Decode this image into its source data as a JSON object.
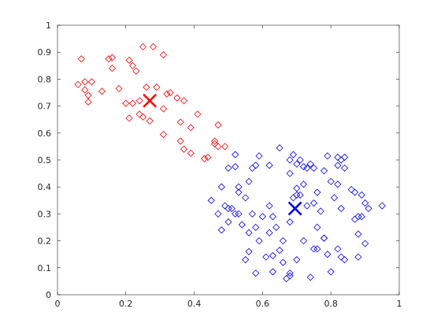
{
  "chart_data": {
    "type": "scatter",
    "xlim": [
      0,
      1
    ],
    "ylim": [
      0,
      1
    ],
    "xticks": [
      0,
      0.2,
      0.4,
      0.6,
      0.8,
      1
    ],
    "yticks": [
      0,
      0.1,
      0.2,
      0.3,
      0.4,
      0.5,
      0.6,
      0.7,
      0.8,
      0.9,
      1
    ],
    "series": [
      {
        "color": "#ff0000",
        "marker": "diamond",
        "x": [
          0.07,
          0.08,
          0.06,
          0.08,
          0.1,
          0.09,
          0.09,
          0.13,
          0.15,
          0.16,
          0.16,
          0.18,
          0.21,
          0.22,
          0.23,
          0.25,
          0.28,
          0.31,
          0.2,
          0.22,
          0.24,
          0.26,
          0.29,
          0.33,
          0.32,
          0.35,
          0.37,
          0.31,
          0.21,
          0.24,
          0.25,
          0.27,
          0.36,
          0.39,
          0.31,
          0.36,
          0.41,
          0.47,
          0.46,
          0.47,
          0.46,
          0.49,
          0.37,
          0.39,
          0.44,
          0.43
        ],
        "y": [
          0.875,
          0.79,
          0.78,
          0.76,
          0.79,
          0.74,
          0.715,
          0.755,
          0.875,
          0.88,
          0.84,
          0.765,
          0.87,
          0.85,
          0.83,
          0.92,
          0.92,
          0.89,
          0.71,
          0.71,
          0.72,
          0.77,
          0.77,
          0.75,
          0.745,
          0.73,
          0.72,
          0.69,
          0.655,
          0.67,
          0.66,
          0.645,
          0.64,
          0.62,
          0.595,
          0.57,
          0.67,
          0.63,
          0.57,
          0.55,
          0.56,
          0.55,
          0.54,
          0.525,
          0.51,
          0.505
        ]
      },
      {
        "color": "#0000ff",
        "marker": "diamond",
        "x": [
          0.65,
          0.59,
          0.58,
          0.57,
          0.62,
          0.68,
          0.68,
          0.69,
          0.7,
          0.71,
          0.72,
          0.73,
          0.74,
          0.75,
          0.79,
          0.78,
          0.82,
          0.83,
          0.84,
          0.82,
          0.84,
          0.52,
          0.5,
          0.52,
          0.56,
          0.55,
          0.53,
          0.53,
          0.48,
          0.45,
          0.47,
          0.49,
          0.5,
          0.51,
          0.52,
          0.53,
          0.48,
          0.5,
          0.54,
          0.56,
          0.58,
          0.57,
          0.6,
          0.62,
          0.63,
          0.64,
          0.66,
          0.68,
          0.62,
          0.59,
          0.55,
          0.56,
          0.58,
          0.61,
          0.63,
          0.63,
          0.65,
          0.66,
          0.67,
          0.68,
          0.68,
          0.7,
          0.7,
          0.7,
          0.72,
          0.71,
          0.69,
          0.73,
          0.75,
          0.76,
          0.76,
          0.77,
          0.78,
          0.79,
          0.75,
          0.76,
          0.74,
          0.72,
          0.81,
          0.82,
          0.8,
          0.83,
          0.86,
          0.87,
          0.88,
          0.89,
          0.87,
          0.88,
          0.9,
          0.91,
          0.89,
          0.95,
          0.82,
          0.83,
          0.88,
          0.9,
          0.8,
          0.78,
          0.84
        ],
        "y": [
          0.545,
          0.515,
          0.48,
          0.47,
          0.48,
          0.5,
          0.45,
          0.52,
          0.485,
          0.5,
          0.475,
          0.47,
          0.485,
          0.47,
          0.515,
          0.46,
          0.51,
          0.5,
          0.51,
          0.48,
          0.47,
          0.52,
          0.47,
          0.475,
          0.42,
          0.36,
          0.4,
          0.38,
          0.4,
          0.35,
          0.3,
          0.33,
          0.32,
          0.32,
          0.3,
          0.3,
          0.24,
          0.27,
          0.26,
          0.23,
          0.25,
          0.3,
          0.29,
          0.33,
          0.29,
          0.25,
          0.2,
          0.27,
          0.23,
          0.2,
          0.13,
          0.16,
          0.08,
          0.14,
          0.145,
          0.085,
          0.165,
          0.12,
          0.06,
          0.07,
          0.08,
          0.13,
          0.37,
          0.395,
          0.41,
          0.37,
          0.36,
          0.33,
          0.34,
          0.38,
          0.25,
          0.31,
          0.21,
          0.15,
          0.17,
          0.17,
          0.065,
          0.2,
          0.36,
          0.41,
          0.42,
          0.32,
          0.39,
          0.38,
          0.29,
          0.29,
          0.28,
          0.225,
          0.34,
          0.32,
          0.37,
          0.33,
          0.17,
          0.14,
          0.14,
          0.19,
          0.085,
          0.21,
          0.13
        ]
      },
      {
        "color": "#ff0000",
        "marker": "x",
        "x": [
          0.27
        ],
        "y": [
          0.72
        ]
      },
      {
        "color": "#0000ff",
        "marker": "x",
        "x": [
          0.695
        ],
        "y": [
          0.32
        ]
      }
    ]
  }
}
